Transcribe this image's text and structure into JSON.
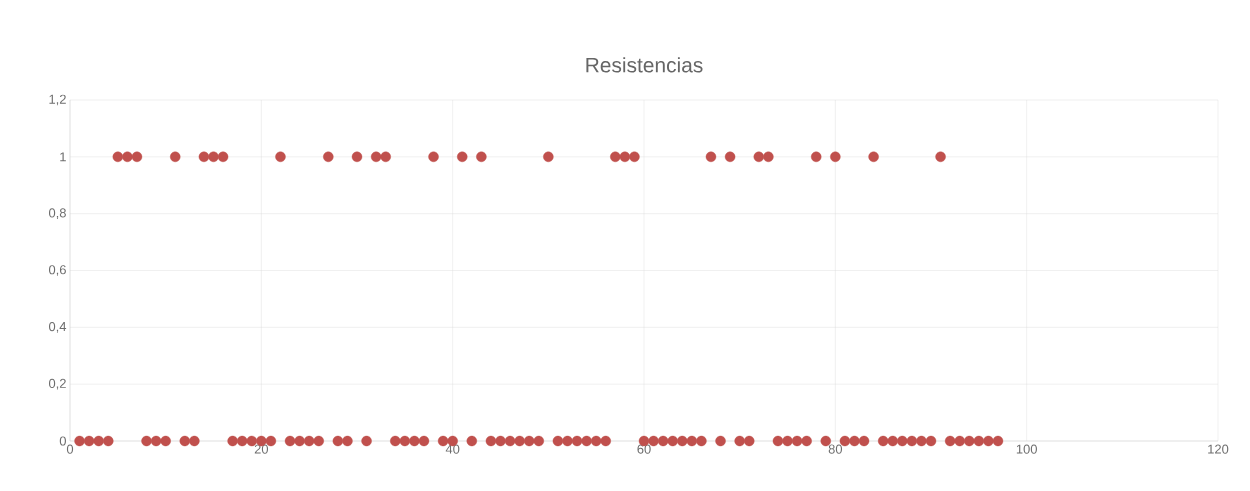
{
  "chart_data": {
    "type": "scatter",
    "title": "Resistencias",
    "x": [
      1,
      2,
      3,
      4,
      5,
      6,
      7,
      8,
      9,
      10,
      11,
      12,
      13,
      14,
      15,
      16,
      17,
      18,
      19,
      20,
      21,
      22,
      23,
      24,
      25,
      26,
      27,
      28,
      29,
      30,
      31,
      32,
      33,
      34,
      35,
      36,
      37,
      38,
      39,
      40,
      41,
      42,
      43,
      44,
      45,
      46,
      47,
      48,
      49,
      50,
      51,
      52,
      53,
      54,
      55,
      56,
      57,
      58,
      59,
      60,
      61,
      62,
      63,
      64,
      65,
      66,
      67,
      68,
      69,
      70,
      71,
      72,
      73,
      74,
      75,
      76,
      77,
      78,
      79,
      80,
      81,
      82,
      83,
      84,
      85,
      86,
      87,
      88,
      89,
      90,
      91,
      92,
      93,
      94,
      95,
      96,
      97
    ],
    "values": [
      0,
      0,
      0,
      0,
      1,
      1,
      1,
      0,
      0,
      0,
      1,
      0,
      0,
      1,
      1,
      1,
      0,
      0,
      0,
      0,
      0,
      1,
      0,
      0,
      0,
      0,
      1,
      0,
      0,
      1,
      0,
      1,
      1,
      0,
      0,
      0,
      0,
      1,
      0,
      0,
      1,
      0,
      1,
      0,
      0,
      0,
      0,
      0,
      0,
      1,
      0,
      0,
      0,
      0,
      0,
      0,
      1,
      1,
      1,
      0,
      0,
      0,
      0,
      0,
      0,
      0,
      1,
      0,
      1,
      0,
      0,
      1,
      1,
      0,
      0,
      0,
      0,
      1,
      0,
      1,
      0,
      0,
      0,
      1,
      0,
      0,
      0,
      0,
      0,
      0,
      1,
      0,
      0,
      0,
      0,
      0,
      0
    ],
    "color": "#c0504d",
    "marker": "circle",
    "grid": true,
    "xlim": [
      0,
      120
    ],
    "xticks": [
      0,
      20,
      40,
      60,
      80,
      100,
      120
    ],
    "ylim": [
      0,
      1.2
    ],
    "yticks": [
      0,
      {
        "value": 0.2,
        "label": "0,2"
      },
      {
        "value": 0.4,
        "label": "0,4"
      },
      {
        "value": 0.6,
        "label": "0,6"
      },
      {
        "value": 0.8,
        "label": "0,8"
      },
      1,
      {
        "value": 1.2,
        "label": "1,2"
      }
    ]
  }
}
